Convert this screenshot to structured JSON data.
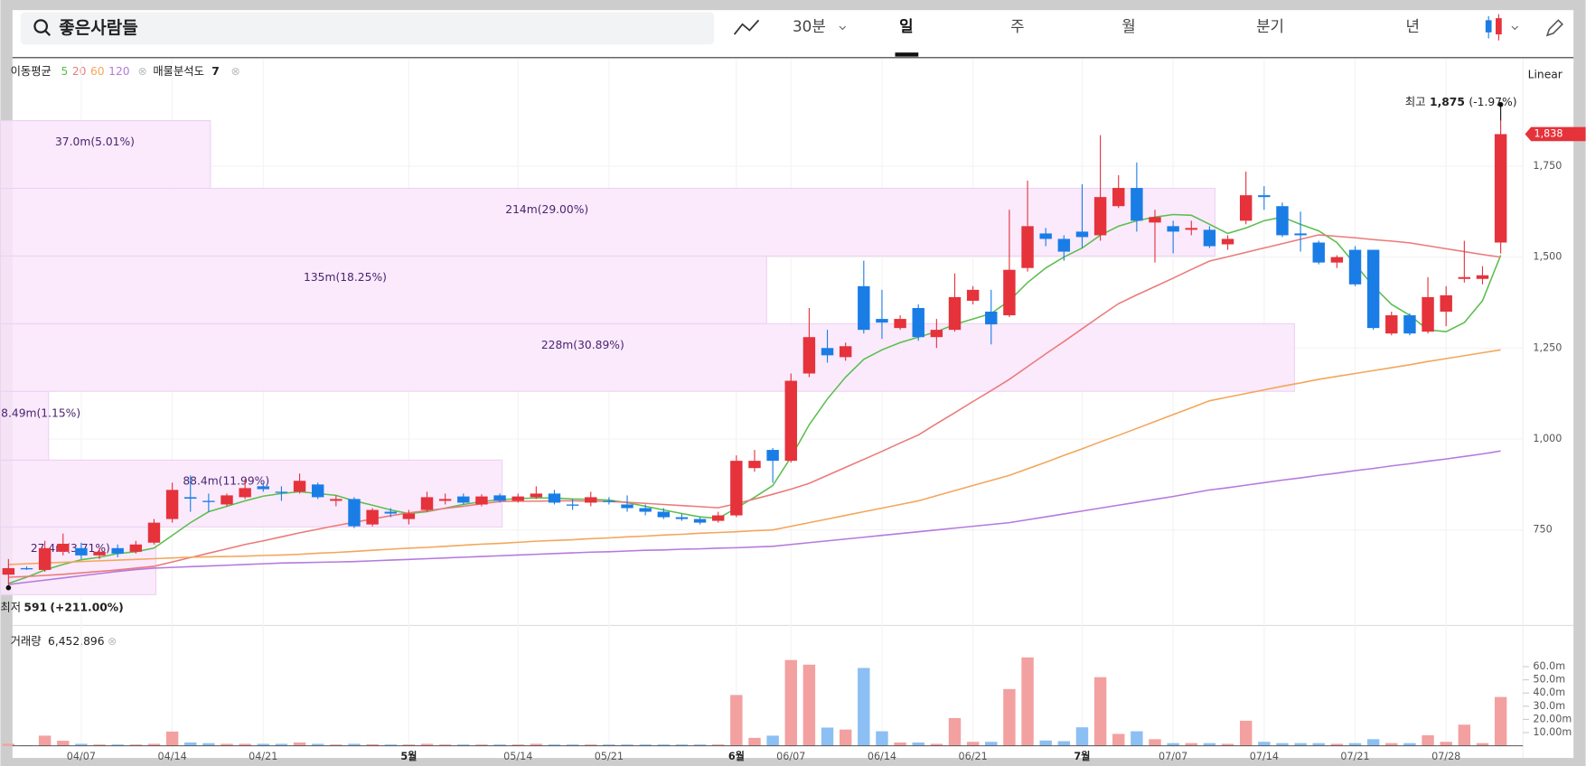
{
  "toolbar": {
    "search": "좋은사람들",
    "tabs": [
      "30분",
      "일",
      "주",
      "월",
      "분기",
      "년"
    ],
    "selected_tab": 1
  },
  "chart_data": {
    "type": "candlestick",
    "categories": [
      null,
      null,
      null,
      null,
      "04/07",
      null,
      null,
      null,
      null,
      "04/14",
      null,
      null,
      null,
      null,
      "04/21",
      null,
      null,
      null,
      null,
      null,
      null,
      null,
      "5월",
      null,
      null,
      null,
      null,
      null,
      "05/14",
      null,
      null,
      null,
      null,
      "05/21",
      null,
      null,
      null,
      null,
      null,
      null,
      "6월",
      null,
      null,
      "06/07",
      null,
      null,
      null,
      null,
      "06/14",
      null,
      null,
      null,
      null,
      "06/21",
      null,
      null,
      null,
      null,
      null,
      "7월",
      null,
      null,
      null,
      null,
      "07/07",
      null,
      null,
      null,
      null,
      "07/14",
      null,
      null,
      null,
      null,
      "07/21",
      null,
      null,
      null,
      null,
      "07/28",
      null,
      null,
      null
    ],
    "open": [
      627,
      645,
      640,
      690,
      700,
      680,
      700,
      690,
      715,
      780,
      840,
      830,
      820,
      840,
      870,
      855,
      855,
      875,
      830,
      835,
      765,
      800,
      780,
      805,
      830,
      842,
      820,
      845,
      830,
      840,
      850,
      820,
      825,
      830,
      820,
      810,
      800,
      785,
      780,
      775,
      790,
      920,
      970,
      940,
      1180,
      1250,
      1225,
      1420,
      1330,
      1305,
      1360,
      1280,
      1300,
      1380,
      1350,
      1340,
      1470,
      1565,
      1550,
      1570,
      1560,
      1640,
      1690,
      1595,
      1585,
      1575,
      1575,
      1535,
      1600,
      1670,
      1640,
      1565,
      1540,
      1485,
      1520,
      1520,
      1290,
      1340,
      1295,
      1350,
      1440,
      1440,
      1540
    ],
    "high": [
      670,
      650,
      720,
      740,
      715,
      700,
      710,
      720,
      780,
      880,
      900,
      850,
      850,
      890,
      880,
      870,
      905,
      880,
      845,
      840,
      810,
      810,
      805,
      855,
      850,
      850,
      848,
      850,
      850,
      870,
      860,
      835,
      855,
      840,
      845,
      820,
      810,
      795,
      785,
      800,
      955,
      970,
      975,
      1180,
      1360,
      1300,
      1265,
      1490,
      1410,
      1340,
      1370,
      1330,
      1455,
      1420,
      1410,
      1630,
      1710,
      1580,
      1560,
      1700,
      1835,
      1725,
      1760,
      1630,
      1600,
      1600,
      1585,
      1560,
      1735,
      1695,
      1650,
      1625,
      1545,
      1505,
      1530,
      1520,
      1350,
      1345,
      1445,
      1420,
      1545,
      1475,
      1875
    ],
    "low": [
      591,
      640,
      635,
      680,
      670,
      670,
      675,
      685,
      710,
      770,
      800,
      800,
      815,
      835,
      855,
      830,
      850,
      835,
      815,
      755,
      760,
      785,
      765,
      800,
      820,
      820,
      815,
      825,
      825,
      835,
      820,
      805,
      815,
      820,
      800,
      790,
      780,
      775,
      765,
      770,
      785,
      910,
      880,
      935,
      1170,
      1210,
      1215,
      1290,
      1275,
      1300,
      1270,
      1250,
      1295,
      1370,
      1260,
      1335,
      1460,
      1530,
      1490,
      1525,
      1545,
      1635,
      1570,
      1485,
      1510,
      1560,
      1525,
      1520,
      1590,
      1630,
      1555,
      1515,
      1480,
      1470,
      1420,
      1300,
      1285,
      1285,
      1290,
      1310,
      1430,
      1425,
      1510
    ],
    "close": [
      645,
      643,
      700,
      712,
      680,
      690,
      685,
      710,
      770,
      860,
      836,
      828,
      845,
      865,
      862,
      852,
      885,
      840,
      835,
      760,
      805,
      795,
      795,
      840,
      835,
      825,
      842,
      830,
      842,
      850,
      825,
      818,
      840,
      828,
      810,
      800,
      785,
      780,
      770,
      790,
      940,
      940,
      940,
      1160,
      1280,
      1230,
      1255,
      1300,
      1320,
      1330,
      1280,
      1300,
      1390,
      1410,
      1315,
      1465,
      1585,
      1550,
      1515,
      1555,
      1665,
      1690,
      1600,
      1610,
      1570,
      1580,
      1530,
      1550,
      1670,
      1665,
      1560,
      1560,
      1485,
      1500,
      1425,
      1305,
      1340,
      1290,
      1390,
      1395,
      1445,
      1450,
      1838
    ],
    "up_color": "#e5323b",
    "down_color": "#1a7de6",
    "ylim": [
      490,
      2040
    ],
    "yticks": [
      750,
      {
        "value": 1000,
        "label": "1,000"
      },
      {
        "value": 1250,
        "label": "1,250"
      },
      {
        "value": 1500,
        "label": "1,500"
      },
      {
        "value": 1750,
        "label": "1,750"
      }
    ],
    "grid": true,
    "scale_label": "Linear",
    "moving_average": {
      "label": "이동평균",
      "series": [
        {
          "name": "5",
          "color": "#5cbf4f",
          "values": [
            603,
            620,
            640,
            655,
            668,
            675,
            685,
            690,
            700,
            735,
            770,
            800,
            815,
            830,
            843,
            850,
            855,
            850,
            845,
            830,
            818,
            805,
            795,
            800,
            810,
            820,
            828,
            833,
            836,
            838,
            838,
            835,
            834,
            832,
            825,
            815,
            805,
            795,
            786,
            782,
            810,
            840,
            872,
            950,
            1039,
            1110,
            1170,
            1219,
            1245,
            1265,
            1280,
            1295,
            1315,
            1330,
            1345,
            1380,
            1430,
            1470,
            1500,
            1525,
            1560,
            1585,
            1600,
            1610,
            1617,
            1615,
            1590,
            1565,
            1580,
            1600,
            1610,
            1590,
            1572,
            1540,
            1480,
            1420,
            1370,
            1340,
            1300,
            1295,
            1320,
            1380,
            1505
          ]
        },
        {
          "name": "20",
          "color": "#ec7a7a",
          "values": [
            620,
            622,
            625,
            628,
            632,
            636,
            640,
            645,
            650,
            662,
            674,
            686,
            698,
            710,
            720,
            731,
            742,
            752,
            762,
            771,
            780,
            789,
            797,
            803,
            809,
            815,
            822,
            828,
            829,
            829,
            830,
            830,
            829,
            828,
            826,
            823,
            820,
            817,
            814,
            811,
            822,
            835,
            848,
            862,
            878,
            900,
            922,
            944,
            966,
            989,
            1011,
            1042,
            1072,
            1103,
            1133,
            1164,
            1199,
            1234,
            1268,
            1303,
            1338,
            1372,
            1396,
            1419,
            1442,
            1466,
            1489,
            1501,
            1513,
            1525,
            1537,
            1549,
            1561,
            1557,
            1553,
            1548,
            1544,
            1539,
            1531,
            1523,
            1515,
            1507,
            1500
          ]
        },
        {
          "name": "60",
          "color": "#f3a65a",
          "values": [
            655,
            657,
            659,
            661,
            663,
            665,
            667,
            669,
            671,
            673,
            675,
            676,
            677,
            678,
            680,
            681,
            683,
            686,
            688,
            691,
            694,
            697,
            700,
            702,
            705,
            708,
            711,
            713,
            716,
            719,
            721,
            723,
            726,
            728,
            731,
            733,
            736,
            738,
            741,
            743,
            745,
            748,
            750,
            760,
            770,
            780,
            790,
            800,
            810,
            820,
            830,
            844,
            858,
            872,
            886,
            900,
            918,
            936,
            955,
            973,
            992,
            1010,
            1029,
            1048,
            1067,
            1086,
            1105,
            1115,
            1125,
            1135,
            1145,
            1154,
            1164,
            1172,
            1180,
            1188,
            1196,
            1204,
            1213,
            1221,
            1229,
            1237,
            1245
          ]
        },
        {
          "name": "120",
          "color": "#b57ade",
          "values": [
            600,
            606,
            612,
            618,
            624,
            630,
            636,
            641,
            645,
            647,
            649,
            651,
            653,
            655,
            657,
            659,
            660,
            661,
            662,
            663,
            665,
            667,
            669,
            671,
            673,
            675,
            677,
            679,
            681,
            683,
            685,
            687,
            689,
            690,
            692,
            694,
            695,
            697,
            698,
            700,
            701,
            703,
            705,
            710,
            715,
            720,
            725,
            730,
            735,
            740,
            745,
            750,
            755,
            760,
            765,
            770,
            778,
            786,
            794,
            802,
            810,
            818,
            826,
            834,
            842,
            851,
            860,
            866,
            873,
            880,
            887,
            893,
            900,
            906,
            913,
            919,
            926,
            932,
            939,
            945,
            952,
            959,
            967
          ]
        }
      ]
    },
    "volume_profile": {
      "label": "매물분석도",
      "count": 7,
      "bins": [
        572,
        758,
        942,
        1131,
        1317,
        1503,
        1689,
        1875
      ],
      "values": [
        27.4,
        88.4,
        8.49,
        228,
        135,
        214,
        37.0
      ],
      "value_labels": [
        "27.4m(3.71%)",
        "88.4m(11.99%)",
        "8.49m(1.15%)",
        "228m(30.89%)",
        "135m(18.25%)",
        "214m(29.00%)",
        "37.0m(5.01%)"
      ],
      "color": "#f9e6fc"
    },
    "high_marker": {
      "label": "최고",
      "value": 1875,
      "value_label": "1,875",
      "change": "(-1.97%)"
    },
    "low_marker": {
      "label": "최저",
      "value": 591,
      "change": "(+211.00%)"
    },
    "last_price": {
      "value": 1838,
      "label": "1,838"
    },
    "volume": {
      "label": "거래량",
      "total": {
        "value": 6452896,
        "label": "6,452,896"
      },
      "values": [
        1.5,
        0.5,
        7.7,
        3.8,
        1.5,
        1,
        1,
        1,
        1.5,
        10.8,
        2.5,
        2,
        1.5,
        1.5,
        1.5,
        1.5,
        2.5,
        1.5,
        1,
        1.5,
        1.2,
        1,
        1,
        1.5,
        1,
        1,
        1,
        1,
        1,
        1.5,
        1,
        1,
        1,
        1,
        1,
        1,
        1,
        1,
        1,
        1,
        38.5,
        6,
        7.7,
        65,
        61.5,
        13.8,
        12.3,
        59,
        11,
        2.5,
        2.5,
        1.5,
        21,
        3,
        3,
        43,
        67,
        4,
        3.5,
        14,
        52,
        9,
        11,
        5,
        2,
        2,
        2,
        1.5,
        19,
        3,
        2,
        2,
        2,
        1.5,
        2,
        5,
        2,
        2,
        8,
        3,
        16,
        2,
        37
      ],
      "up_color": "#f3a0a0",
      "down_color": "#8cbff3",
      "ylim": [
        0,
        72
      ],
      "yticks": [
        {
          "value": 10,
          "label": "10.00m"
        },
        {
          "value": 20,
          "label": "20.00m"
        },
        {
          "value": 30,
          "label": "30.0m"
        },
        {
          "value": 40,
          "label": "40.0m"
        },
        {
          "value": 50,
          "label": "50.0m"
        },
        {
          "value": 60,
          "label": "60.0m"
        }
      ]
    }
  }
}
